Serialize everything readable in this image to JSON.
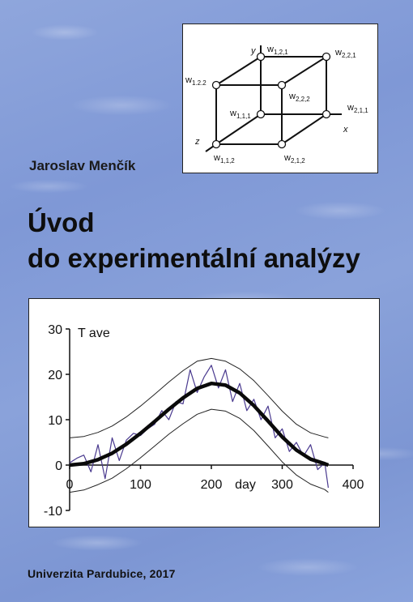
{
  "cover": {
    "author": "Jaroslav Menčík",
    "title_line1": "Úvod",
    "title_line2": "do experimentální analýzy",
    "publisher": "Univerzita Pardubice, 2017"
  },
  "cube_diagram": {
    "axis_labels": {
      "x": "x",
      "y": "y",
      "z": "z"
    },
    "nodes": [
      {
        "id": "w121",
        "base": "w",
        "sub": "1,2,1"
      },
      {
        "id": "w221",
        "base": "w",
        "sub": "2,2,1"
      },
      {
        "id": "w122",
        "base": "w",
        "sub": "1.2.2"
      },
      {
        "id": "w222",
        "base": "w",
        "sub": "2,2,2"
      },
      {
        "id": "w111",
        "base": "w",
        "sub": "1,1,1"
      },
      {
        "id": "w211",
        "base": "w",
        "sub": "2,1,1"
      },
      {
        "id": "w112",
        "base": "w",
        "sub": "1,1,2"
      },
      {
        "id": "w212",
        "base": "w",
        "sub": "2,1,2"
      }
    ]
  },
  "chart_data": {
    "type": "line",
    "annotation": "T ave",
    "xlabel": "day",
    "ylabel": "",
    "xlim": [
      0,
      400
    ],
    "ylim": [
      -10,
      30
    ],
    "x_ticks": [
      0,
      100,
      200,
      300,
      400
    ],
    "y_ticks": [
      -10,
      0,
      10,
      20,
      30
    ],
    "series": [
      {
        "style": "noisy",
        "x": [
          0,
          10,
          20,
          30,
          40,
          50,
          60,
          70,
          80,
          90,
          100,
          110,
          120,
          130,
          140,
          150,
          160,
          170,
          180,
          190,
          200,
          210,
          220,
          230,
          240,
          250,
          260,
          270,
          280,
          290,
          300,
          310,
          320,
          330,
          340,
          350,
          360,
          365
        ],
        "values": [
          0.5,
          1.5,
          2.2,
          -1.5,
          4.5,
          -3,
          6,
          1,
          5.5,
          7,
          6.5,
          8,
          9,
          12,
          10,
          14,
          13.5,
          21,
          16,
          19.5,
          22,
          17,
          21,
          14,
          18,
          12,
          14.5,
          10,
          13,
          6,
          8,
          3,
          5,
          2,
          4.5,
          -1,
          0.5,
          -5
        ]
      },
      {
        "style": "fit",
        "x": [
          0,
          20,
          40,
          60,
          80,
          100,
          120,
          140,
          160,
          180,
          200,
          220,
          240,
          260,
          280,
          300,
          320,
          340,
          360,
          365
        ],
        "values": [
          0,
          0.3,
          1.2,
          2.6,
          4.6,
          7,
          9.6,
          12.3,
          14.8,
          16.9,
          18,
          17.6,
          15.9,
          13.1,
          9.7,
          6.2,
          3.3,
          1.3,
          0.3,
          0
        ]
      },
      {
        "style": "band-upper",
        "x": [
          0,
          20,
          40,
          60,
          80,
          100,
          120,
          140,
          160,
          180,
          200,
          220,
          240,
          260,
          280,
          300,
          320,
          340,
          360,
          365
        ],
        "values": [
          6,
          6.3,
          7.2,
          8.6,
          10.6,
          13,
          15.6,
          18.3,
          20.8,
          22.9,
          23.5,
          22.9,
          21.2,
          18.6,
          15.3,
          11.9,
          9,
          7.1,
          6.2,
          6
        ]
      },
      {
        "style": "band-lower",
        "x": [
          0,
          20,
          40,
          60,
          80,
          100,
          120,
          140,
          160,
          180,
          200,
          220,
          240,
          260,
          280,
          300,
          320,
          340,
          360,
          365
        ],
        "values": [
          -6,
          -5.5,
          -4.3,
          -2.9,
          -0.8,
          1.6,
          4.2,
          6.8,
          9.1,
          11.2,
          12.3,
          11.9,
          10.3,
          7.6,
          4.2,
          0.7,
          -2.2,
          -4.2,
          -5.4,
          -6
        ]
      }
    ]
  }
}
